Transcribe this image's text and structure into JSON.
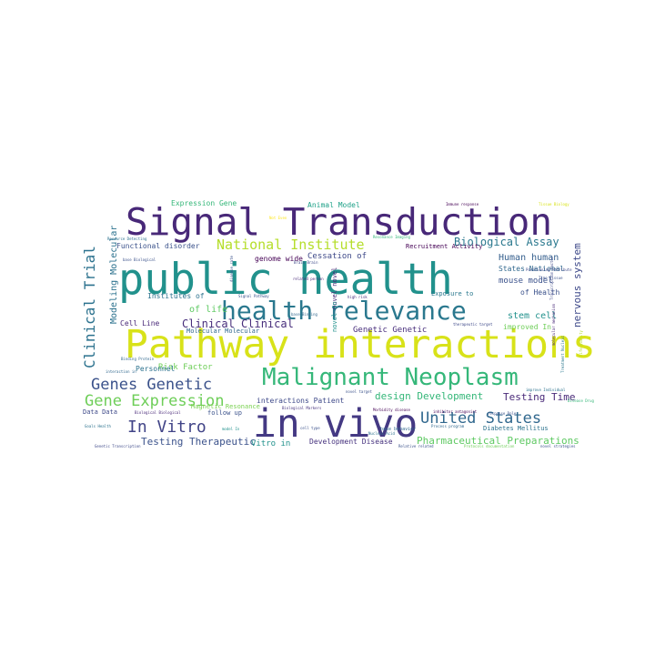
{
  "words": [
    {
      "text": "Signal Transduction",
      "color": "#482878"
    },
    {
      "text": "public health",
      "color": "#21918c"
    },
    {
      "text": "Pathway interactions",
      "color": "#d8e219"
    },
    {
      "text": "in vivo",
      "color": "#443983"
    },
    {
      "text": "health relevance",
      "color": "#2a788e"
    },
    {
      "text": "Malignant Neoplasm",
      "color": "#35b779"
    },
    {
      "text": "Genes Genetic",
      "color": "#3b528b"
    },
    {
      "text": "Gene Expression",
      "color": "#6ece58"
    },
    {
      "text": "In Vitro",
      "color": "#414487"
    },
    {
      "text": "United States",
      "color": "#31688e"
    },
    {
      "text": "Clinical Trial",
      "color": "#2c728e"
    },
    {
      "text": "National Institute",
      "color": "#b5de2b"
    },
    {
      "text": "Biological Assay",
      "color": "#2a788e"
    },
    {
      "text": "Clinical Clinical",
      "color": "#472d7b"
    },
    {
      "text": "nervous system",
      "color": "#3e4989"
    },
    {
      "text": "Pharmaceutical Preparations",
      "color": "#5ec962"
    },
    {
      "text": "Testing Therapeutic",
      "color": "#3b528b"
    },
    {
      "text": "design Development",
      "color": "#35b779"
    },
    {
      "text": "Testing Time",
      "color": "#482878"
    },
    {
      "text": "Modeling Molecular",
      "color": "#2c728e"
    },
    {
      "text": "Human human",
      "color": "#355f8d"
    },
    {
      "text": "stem cell",
      "color": "#21918c"
    },
    {
      "text": "mouse model",
      "color": "#3b528b"
    },
    {
      "text": "Genetic Genetic",
      "color": "#472d7b"
    },
    {
      "text": "Risk Factor",
      "color": "#6ece58"
    },
    {
      "text": "of life",
      "color": "#5ec962"
    },
    {
      "text": "Institutes of",
      "color": "#2c728e"
    },
    {
      "text": "Cessation of",
      "color": "#3e4989"
    },
    {
      "text": "genome wide",
      "color": "#440154"
    },
    {
      "text": "Functional disorder",
      "color": "#3b528b"
    },
    {
      "text": "Expression Gene",
      "color": "#35b779"
    },
    {
      "text": "Animal Model",
      "color": "#1fa188"
    },
    {
      "text": "Recruitment Activity",
      "color": "#440154"
    },
    {
      "text": "States National",
      "color": "#31688e"
    },
    {
      "text": "of Health",
      "color": "#3b528b"
    },
    {
      "text": "improved In",
      "color": "#6ece58"
    },
    {
      "text": "Development Disease",
      "color": "#46327e"
    },
    {
      "text": "interactions Patient",
      "color": "#3e4989"
    },
    {
      "text": "Vitro in",
      "color": "#21918c"
    },
    {
      "text": "Cell Line",
      "color": "#482878"
    },
    {
      "text": "Personnel",
      "color": "#2c728e"
    },
    {
      "text": "Molecular Molecular",
      "color": "#31688e"
    },
    {
      "text": "Data Data",
      "color": "#3e4989"
    },
    {
      "text": "follow up",
      "color": "#3b528b"
    },
    {
      "text": "Exposure to",
      "color": "#2a788e"
    },
    {
      "text": "Diabetes Mellitus",
      "color": "#2c728e"
    },
    {
      "text": "Magnetic Resonance",
      "color": "#7ad151"
    },
    {
      "text": "novel novel",
      "color": "#482878"
    },
    {
      "text": "novel In",
      "color": "#21918c"
    },
    {
      "text": "base behavior",
      "color": "#31688e"
    },
    {
      "text": "inhibitor antagonist",
      "color": "#440154"
    },
    {
      "text": "Relative related",
      "color": "#3b528b"
    },
    {
      "text": "Protocols documentation",
      "color": "#6ece58"
    },
    {
      "text": "novel strategies",
      "color": "#3b528b"
    },
    {
      "text": "Genetic Transcription",
      "color": "#3e4989"
    },
    {
      "text": "Biological Markers",
      "color": "#46327e"
    },
    {
      "text": "Biological Biological",
      "color": "#482878"
    },
    {
      "text": "base Biological",
      "color": "#3b528b"
    },
    {
      "text": "Resonance Imaging",
      "color": "#35b779"
    },
    {
      "text": "Immune response",
      "color": "#440154"
    },
    {
      "text": "Binding Protein",
      "color": "#31688e"
    },
    {
      "text": "Signal Pathway",
      "color": "#3b528b"
    },
    {
      "text": "Brain Brain",
      "color": "#3e4989"
    },
    {
      "text": "related person",
      "color": "#482878"
    },
    {
      "text": "high risk",
      "color": "#472d7b"
    },
    {
      "text": "base Binding",
      "color": "#31688e"
    },
    {
      "text": "Positioning Attribute",
      "color": "#3e4989"
    },
    {
      "text": "Time Tissue",
      "color": "#3b528b"
    },
    {
      "text": "therapeutic target",
      "color": "#3e4989"
    },
    {
      "text": "improve Individual",
      "color": "#2c728e"
    },
    {
      "text": "Morbidity disease",
      "color": "#440154"
    },
    {
      "text": "Process program",
      "color": "#31688e"
    },
    {
      "text": "response Role",
      "color": "#3b528b"
    },
    {
      "text": "Goals Health",
      "color": "#2c728e"
    },
    {
      "text": "cell type",
      "color": "#3b528b"
    },
    {
      "text": "model In",
      "color": "#21918c"
    },
    {
      "text": "Resource Detecting",
      "color": "#2c728e"
    },
    {
      "text": "Tissue Biology",
      "color": "#d8e219"
    },
    {
      "text": "Not Even",
      "color": "#fde725"
    },
    {
      "text": "disease rate",
      "color": "#3b528b"
    },
    {
      "text": "Disease Drug",
      "color": "#35b779"
    },
    {
      "text": "Transcription factor",
      "color": "#3e4989"
    },
    {
      "text": "interaction in",
      "color": "#31688e"
    },
    {
      "text": "Nucleic Acid",
      "color": "#2c728e"
    },
    {
      "text": "life Quality",
      "color": "#b5de2b"
    },
    {
      "text": "Treatment Nucleic",
      "color": "#2a788e"
    },
    {
      "text": "molecular mechanism",
      "color": "#482878"
    },
    {
      "text": "novel target",
      "color": "#3b528b"
    }
  ]
}
